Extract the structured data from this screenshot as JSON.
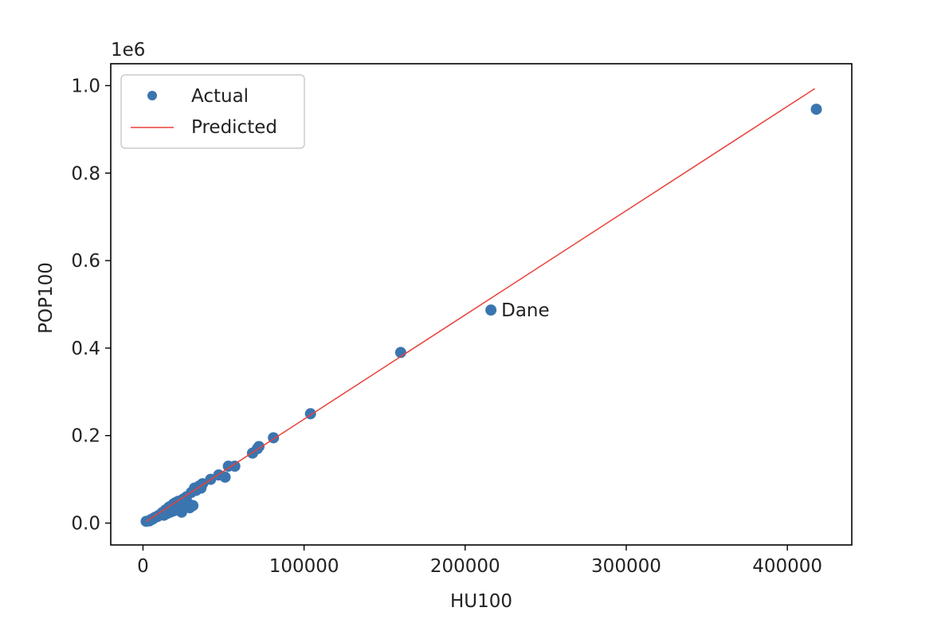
{
  "chart_data": {
    "type": "scatter",
    "xlabel": "HU100",
    "ylabel": "POP100",
    "y_offset_label": "1e6",
    "xlim": [
      -20000,
      440000
    ],
    "ylim": [
      -0.05,
      1.05
    ],
    "x_ticks": [
      0,
      100000,
      200000,
      300000,
      400000
    ],
    "x_tick_labels": [
      "0",
      "100000",
      "200000",
      "300000",
      "400000"
    ],
    "y_ticks": [
      0.0,
      0.2,
      0.4,
      0.6,
      0.8,
      1.0
    ],
    "y_tick_labels": [
      "0.0",
      "0.2",
      "0.4",
      "0.6",
      "0.8",
      "1.0"
    ],
    "grid": false,
    "legend_position": "upper-left",
    "series": [
      {
        "name": "Actual",
        "kind": "scatter",
        "color": "#3b75af",
        "points": [
          [
            2000,
            0.004
          ],
          [
            4000,
            0.005
          ],
          [
            5000,
            0.008
          ],
          [
            6000,
            0.009
          ],
          [
            7000,
            0.012
          ],
          [
            8000,
            0.014
          ],
          [
            9000,
            0.015
          ],
          [
            10000,
            0.018
          ],
          [
            11000,
            0.02
          ],
          [
            12000,
            0.024
          ],
          [
            13000,
            0.026
          ],
          [
            14000,
            0.03
          ],
          [
            15000,
            0.032
          ],
          [
            16000,
            0.036
          ],
          [
            17000,
            0.038
          ],
          [
            18000,
            0.04
          ],
          [
            19000,
            0.044
          ],
          [
            20000,
            0.046
          ],
          [
            21000,
            0.048
          ],
          [
            22000,
            0.05
          ],
          [
            13000,
            0.018
          ],
          [
            15000,
            0.022
          ],
          [
            17000,
            0.025
          ],
          [
            19000,
            0.028
          ],
          [
            21000,
            0.032
          ],
          [
            23000,
            0.035
          ],
          [
            24000,
            0.025
          ],
          [
            25000,
            0.055
          ],
          [
            26000,
            0.04
          ],
          [
            27000,
            0.06
          ],
          [
            28000,
            0.045
          ],
          [
            29000,
            0.035
          ],
          [
            30000,
            0.07
          ],
          [
            31000,
            0.04
          ],
          [
            32000,
            0.08
          ],
          [
            33000,
            0.075
          ],
          [
            35000,
            0.085
          ],
          [
            36000,
            0.08
          ],
          [
            37000,
            0.09
          ],
          [
            42000,
            0.1
          ],
          [
            47000,
            0.11
          ],
          [
            51000,
            0.105
          ],
          [
            53000,
            0.13
          ],
          [
            57000,
            0.13
          ],
          [
            68000,
            0.16
          ],
          [
            71000,
            0.17
          ],
          [
            72000,
            0.175
          ],
          [
            81000,
            0.195
          ],
          [
            104000,
            0.25
          ],
          [
            160000,
            0.39
          ],
          [
            216000,
            0.487
          ],
          [
            418000,
            0.946
          ]
        ]
      },
      {
        "name": "Predicted",
        "kind": "line",
        "color": "#e8413a",
        "points": [
          [
            2000,
            0.004
          ],
          [
            417000,
            0.993
          ]
        ]
      }
    ],
    "annotations": [
      {
        "text": "Dane",
        "x": 216000,
        "y": 0.487
      }
    ]
  }
}
